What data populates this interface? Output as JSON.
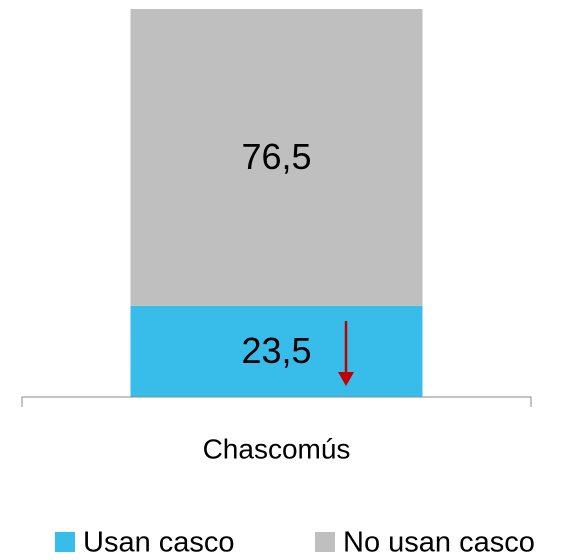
{
  "chart_data": {
    "type": "stacked_bar",
    "categories": [
      "Chascomús"
    ],
    "series": [
      {
        "name": "Usan casco",
        "color": "#38bdea",
        "values": [
          23.5
        ],
        "value_labels": [
          "23,5"
        ]
      },
      {
        "name": "No usan casco",
        "color": "#bfbfbf",
        "values": [
          76.5
        ],
        "value_labels": [
          "76,5"
        ]
      }
    ]
  }
}
